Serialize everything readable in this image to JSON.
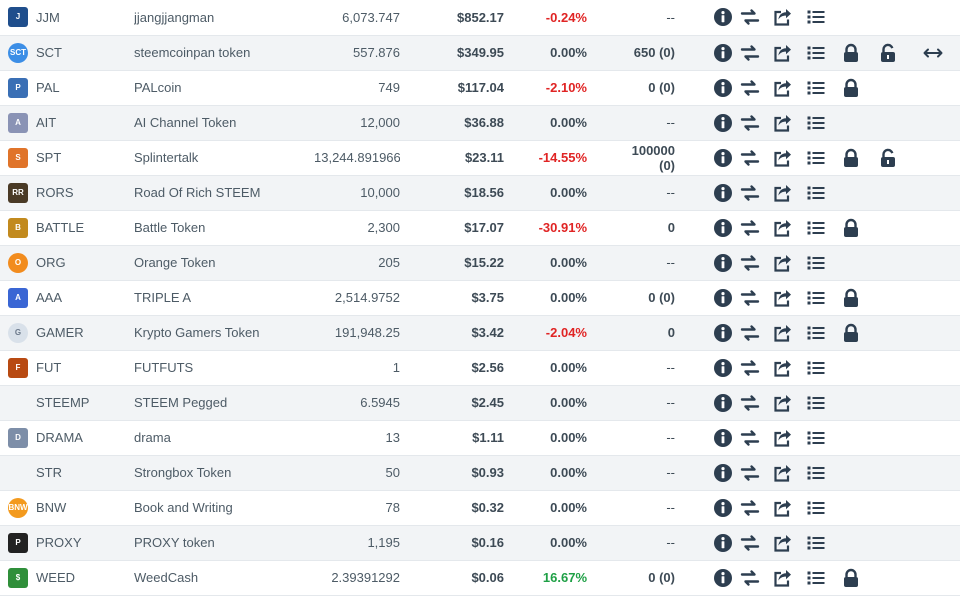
{
  "colors": {
    "positive": "#1fa046",
    "negative": "#e02424",
    "icon_dark": "#2d3e50",
    "row_alt_bg": "#f2f4f6"
  },
  "tokens": [
    {
      "symbol": "JJM",
      "name": "jjangjjangman",
      "supply": "6,073.747",
      "price": "$852.17",
      "change": "-0.24%",
      "balance": "--",
      "lock": false,
      "unlock": false,
      "transfer": false,
      "icon": "jjm-token-icon"
    },
    {
      "symbol": "SCT",
      "name": "steemcoinpan token",
      "supply": "557.876",
      "price": "$349.95",
      "change": "0.00%",
      "balance": "650 (0)",
      "lock": true,
      "unlock": true,
      "transfer": true,
      "icon": "sct-token-icon"
    },
    {
      "symbol": "PAL",
      "name": "PALcoin",
      "supply": "749",
      "price": "$117.04",
      "change": "-2.10%",
      "balance": "0 (0)",
      "lock": true,
      "unlock": false,
      "transfer": false,
      "icon": "pal-token-icon"
    },
    {
      "symbol": "AIT",
      "name": "AI Channel Token",
      "supply": "12,000",
      "price": "$36.88",
      "change": "0.00%",
      "balance": "--",
      "lock": false,
      "unlock": false,
      "transfer": false,
      "icon": "ait-token-icon"
    },
    {
      "symbol": "SPT",
      "name": "Splintertalk",
      "supply": "13,244.891966",
      "price": "$23.11",
      "change": "-14.55%",
      "balance": "100000",
      "balance2": "(0)",
      "lock": true,
      "unlock": true,
      "transfer": false,
      "icon": "spt-token-icon"
    },
    {
      "symbol": "RORS",
      "name": "Road Of Rich STEEM",
      "supply": "10,000",
      "price": "$18.56",
      "change": "0.00%",
      "balance": "--",
      "lock": false,
      "unlock": false,
      "transfer": false,
      "icon": "rors-token-icon"
    },
    {
      "symbol": "BATTLE",
      "name": "Battle Token",
      "supply": "2,300",
      "price": "$17.07",
      "change": "-30.91%",
      "balance": "0",
      "lock": true,
      "unlock": false,
      "transfer": false,
      "icon": "battle-token-icon"
    },
    {
      "symbol": "ORG",
      "name": "Orange Token",
      "supply": "205",
      "price": "$15.22",
      "change": "0.00%",
      "balance": "--",
      "lock": false,
      "unlock": false,
      "transfer": false,
      "icon": "org-token-icon"
    },
    {
      "symbol": "AAA",
      "name": "TRIPLE A",
      "supply": "2,514.9752",
      "price": "$3.75",
      "change": "0.00%",
      "balance": "0 (0)",
      "lock": true,
      "unlock": false,
      "transfer": false,
      "icon": "aaa-token-icon"
    },
    {
      "symbol": "GAMER",
      "name": "Krypto Gamers Token",
      "supply": "191,948.25",
      "price": "$3.42",
      "change": "-2.04%",
      "balance": "0",
      "lock": true,
      "unlock": false,
      "transfer": false,
      "icon": "gamer-token-icon"
    },
    {
      "symbol": "FUT",
      "name": "FUTFUTS",
      "supply": "1",
      "price": "$2.56",
      "change": "0.00%",
      "balance": "--",
      "lock": false,
      "unlock": false,
      "transfer": false,
      "icon": "fut-token-icon"
    },
    {
      "symbol": "STEEMP",
      "name": "STEEM Pegged",
      "supply": "6.5945",
      "price": "$2.45",
      "change": "0.00%",
      "balance": "--",
      "lock": false,
      "unlock": false,
      "transfer": false,
      "icon": ""
    },
    {
      "symbol": "DRAMA",
      "name": "drama",
      "supply": "13",
      "price": "$1.11",
      "change": "0.00%",
      "balance": "--",
      "lock": false,
      "unlock": false,
      "transfer": false,
      "icon": "drama-token-icon"
    },
    {
      "symbol": "STR",
      "name": "Strongbox Token",
      "supply": "50",
      "price": "$0.93",
      "change": "0.00%",
      "balance": "--",
      "lock": false,
      "unlock": false,
      "transfer": false,
      "icon": ""
    },
    {
      "symbol": "BNW",
      "name": "Book and Writing",
      "supply": "78",
      "price": "$0.32",
      "change": "0.00%",
      "balance": "--",
      "lock": false,
      "unlock": false,
      "transfer": false,
      "icon": "bnw-token-icon"
    },
    {
      "symbol": "PROXY",
      "name": "PROXY token",
      "supply": "1,195",
      "price": "$0.16",
      "change": "0.00%",
      "balance": "--",
      "lock": false,
      "unlock": false,
      "transfer": false,
      "icon": "proxy-token-icon"
    },
    {
      "symbol": "WEED",
      "name": "WeedCash",
      "supply": "2.39391292",
      "price": "$0.06",
      "change": "16.67%",
      "balance": "0 (0)",
      "lock": true,
      "unlock": false,
      "transfer": false,
      "icon": "weed-token-icon"
    }
  ],
  "token_icons": {
    "JJM": {
      "bg": "#1f4e8c",
      "text": "J"
    },
    "SCT": {
      "bg": "#3c8ee6",
      "text": "SCT"
    },
    "PAL": {
      "bg": "#3a6fb5",
      "text": "P"
    },
    "AIT": {
      "bg": "#8a93b5",
      "text": "A"
    },
    "SPT": {
      "bg": "#e0742a",
      "text": "S"
    },
    "RORS": {
      "bg": "#4a3a26",
      "text": "RR"
    },
    "BATTLE": {
      "bg": "#c28a1e",
      "text": "B"
    },
    "ORG": {
      "bg": "#f28c1e",
      "text": "O"
    },
    "AAA": {
      "bg": "#3a66d4",
      "text": "A"
    },
    "GAMER": {
      "bg": "#d9e1ea",
      "text": "G"
    },
    "FUT": {
      "bg": "#b84a12",
      "text": "F"
    },
    "DRAMA": {
      "bg": "#7d8ea8",
      "text": "D"
    },
    "BNW": {
      "bg": "#f39a1e",
      "text": "BNW"
    },
    "PROXY": {
      "bg": "#222222",
      "text": "P"
    },
    "WEED": {
      "bg": "#2f8f3a",
      "text": "$"
    }
  }
}
